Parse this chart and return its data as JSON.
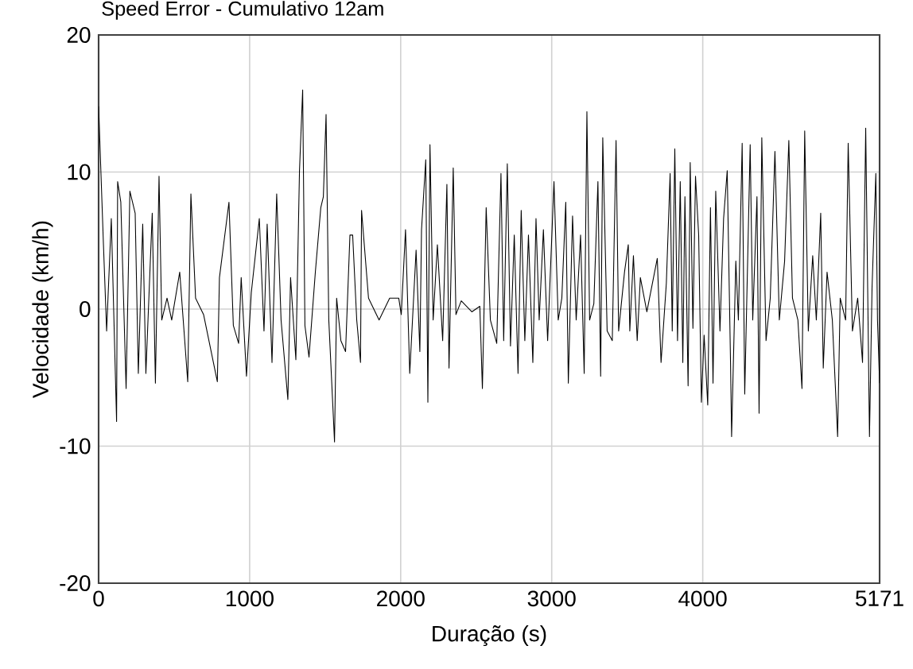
{
  "chart_data": {
    "type": "line",
    "title": "Speed Error - Cumulativo 12am",
    "xlabel": "Duração (s)",
    "ylabel": "Velocidade (km/h)",
    "xlim": [
      0,
      5171
    ],
    "ylim": [
      -20,
      20
    ],
    "xticks": [
      0,
      1000,
      2000,
      3000,
      4000,
      5171
    ],
    "yticks": [
      -20,
      -10,
      0,
      10,
      20
    ],
    "grid": true,
    "color": "#000000",
    "x": [
      0,
      32,
      53,
      84,
      119,
      126,
      147,
      182,
      207,
      242,
      263,
      292,
      313,
      355,
      376,
      400,
      418,
      453,
      484,
      537,
      590,
      611,
      642,
      695,
      786,
      800,
      863,
      892,
      927,
      944,
      979,
      1011,
      1064,
      1095,
      1116,
      1148,
      1179,
      1208,
      1253,
      1271,
      1306,
      1330,
      1351,
      1366,
      1393,
      1435,
      1471,
      1488,
      1506,
      1524,
      1562,
      1576,
      1604,
      1635,
      1664,
      1682,
      1709,
      1734,
      1741,
      1787,
      1857,
      1927,
      1987,
      2004,
      2032,
      2060,
      2102,
      2127,
      2138,
      2166,
      2180,
      2194,
      2215,
      2243,
      2278,
      2306,
      2320,
      2348,
      2366,
      2401,
      2471,
      2524,
      2541,
      2566,
      2594,
      2636,
      2664,
      2682,
      2706,
      2727,
      2752,
      2777,
      2798,
      2822,
      2846,
      2875,
      2896,
      2917,
      2945,
      2973,
      3015,
      3043,
      3067,
      3093,
      3110,
      3138,
      3162,
      3191,
      3215,
      3233,
      3251,
      3279,
      3306,
      3324,
      3338,
      3367,
      3401,
      3426,
      3443,
      3482,
      3507,
      3517,
      3541,
      3566,
      3587,
      3630,
      3699,
      3724,
      3759,
      3784,
      3798,
      3815,
      3833,
      3851,
      3868,
      3882,
      3903,
      3917,
      3935,
      3952,
      3973,
      3991,
      4009,
      4033,
      4051,
      4068,
      4086,
      4114,
      4138,
      4162,
      4184,
      4191,
      4219,
      4236,
      4261,
      4278,
      4314,
      4331,
      4359,
      4373,
      4391,
      4419,
      4447,
      4478,
      4507,
      4542,
      4570,
      4594,
      4630,
      4657,
      4675,
      4699,
      4728,
      4752,
      4781,
      4798,
      4823,
      4858,
      4893,
      4910,
      4946,
      4963,
      4991,
      5026,
      5058,
      5079,
      5104,
      5121,
      5146,
      5157,
      5171
    ],
    "values": [
      14.8,
      4.7,
      -1.6,
      6.6,
      -8.2,
      9.3,
      7.8,
      -5.8,
      8.6,
      7.0,
      -4.7,
      6.2,
      -4.7,
      7.0,
      -5.4,
      9.7,
      -0.8,
      0.8,
      -0.8,
      2.7,
      -5.3,
      8.4,
      0.8,
      -0.4,
      -5.3,
      2.3,
      7.8,
      -1.2,
      -2.5,
      2.3,
      -4.9,
      1.2,
      6.6,
      -1.6,
      6.2,
      -3.9,
      8.4,
      -0.8,
      -6.6,
      2.3,
      -3.7,
      10.1,
      16.0,
      -1.2,
      -3.5,
      2.7,
      7.4,
      8.2,
      14.2,
      -0.8,
      -9.7,
      0.8,
      -2.3,
      -3.1,
      5.4,
      5.4,
      -0.8,
      -3.9,
      7.2,
      0.8,
      -0.8,
      0.8,
      0.8,
      -0.4,
      5.8,
      -4.7,
      4.3,
      -3.1,
      5.8,
      10.9,
      -6.8,
      12.0,
      -0.8,
      4.7,
      -2.3,
      9.1,
      -4.3,
      10.3,
      -0.4,
      0.6,
      -0.2,
      0.2,
      -5.8,
      7.4,
      -0.8,
      -2.5,
      9.9,
      -2.3,
      10.6,
      -2.7,
      5.4,
      -4.7,
      7.2,
      -2.3,
      5.4,
      -3.9,
      6.6,
      -0.8,
      5.8,
      -2.3,
      9.3,
      -0.8,
      0.8,
      7.8,
      -5.4,
      6.8,
      -0.8,
      5.4,
      -4.7,
      14.4,
      -0.8,
      0.4,
      9.3,
      -4.9,
      12.5,
      -1.6,
      -2.3,
      12.3,
      -1.6,
      2.7,
      4.7,
      -1.6,
      3.9,
      -2.3,
      2.3,
      -0.2,
      3.7,
      -3.9,
      1.9,
      9.9,
      -1.6,
      11.7,
      -2.3,
      9.3,
      -3.9,
      8.2,
      -5.6,
      10.7,
      -1.4,
      9.7,
      5.4,
      -6.8,
      -1.9,
      -7.0,
      7.4,
      -5.4,
      8.6,
      -1.6,
      6.6,
      10.1,
      -3.9,
      -9.3,
      3.5,
      -0.8,
      12.1,
      -6.2,
      12.0,
      -0.8,
      8.2,
      -7.6,
      12.5,
      -2.3,
      0.8,
      11.5,
      -0.8,
      3.5,
      12.3,
      0.8,
      -0.8,
      -5.8,
      13.0,
      -1.6,
      3.9,
      -0.8,
      7.0,
      -4.3,
      2.7,
      -0.8,
      -9.3,
      0.8,
      -0.8,
      12.1,
      -1.6,
      0.8,
      -3.9,
      13.2,
      -9.3,
      1.6,
      9.9,
      -0.8,
      -5.4
    ]
  }
}
